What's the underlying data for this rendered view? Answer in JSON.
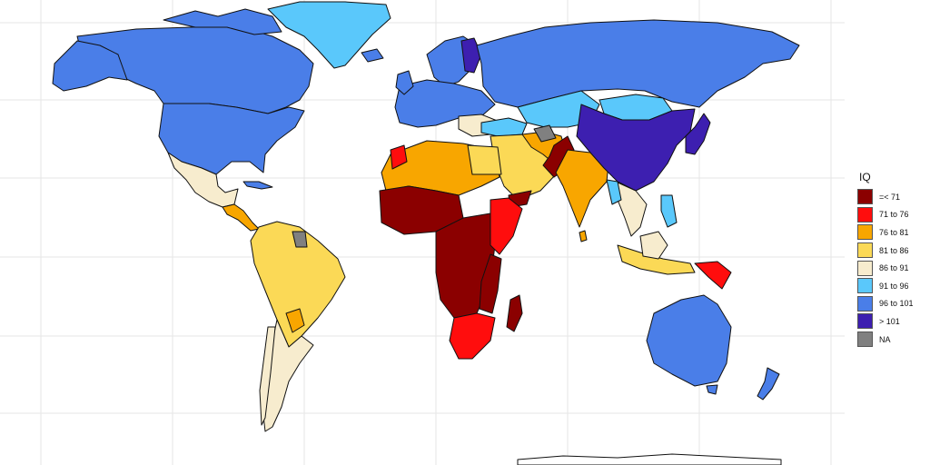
{
  "legend": {
    "title": "IQ",
    "items": [
      {
        "label": "=< 71",
        "color": "#8b0000"
      },
      {
        "label": "71 to 76",
        "color": "#ff0d0d"
      },
      {
        "label": "76 to 81",
        "color": "#f8a600"
      },
      {
        "label": "81 to 86",
        "color": "#fbd956"
      },
      {
        "label": "86 to 91",
        "color": "#f7ecce"
      },
      {
        "label": "91 to 96",
        "color": "#5ac8fb"
      },
      {
        "label": "96 to 101",
        "color": "#4a7ee8"
      },
      {
        "label": "> 101",
        "color": "#3d1fb0"
      },
      {
        "label": "NA",
        "color": "#808080"
      }
    ]
  },
  "colors": {
    "background": "#ffffff",
    "grid": "#e6e6e6",
    "border": "#111111"
  }
}
